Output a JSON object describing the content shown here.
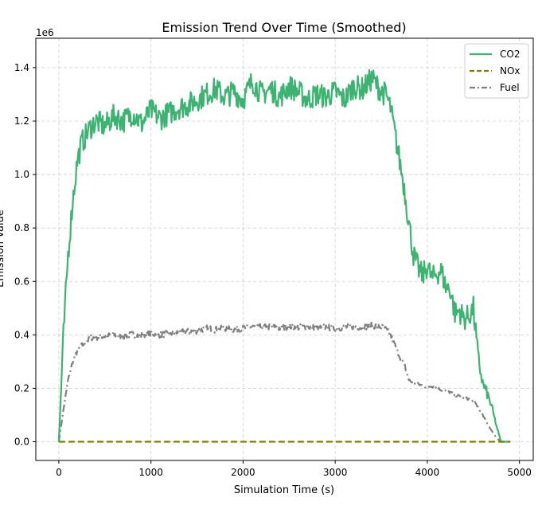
{
  "chart_data": {
    "type": "line",
    "title": "Emission Trend Over Time (Smoothed)",
    "xlabel": "Simulation Time (s)",
    "ylabel": "Emission Value",
    "offset_text": "1e6",
    "xlim": [
      -250,
      5150
    ],
    "ylim": [
      -70000,
      1510000
    ],
    "xticks": [
      0,
      1000,
      2000,
      3000,
      4000,
      5000
    ],
    "xtick_labels": [
      "0",
      "1000",
      "2000",
      "3000",
      "4000",
      "5000"
    ],
    "yticks": [
      0,
      200000,
      400000,
      600000,
      800000,
      1000000,
      1200000,
      1400000
    ],
    "ytick_labels": [
      "0.0",
      "0.2",
      "0.4",
      "0.6",
      "0.8",
      "1.0",
      "1.2",
      "1.4"
    ],
    "grid": true,
    "legend_position": "top-right",
    "series": [
      {
        "name": "CO2",
        "color": "#3cb371",
        "style": "solid",
        "x": [
          0,
          50,
          100,
          150,
          200,
          250,
          300,
          350,
          400,
          500,
          600,
          700,
          800,
          900,
          1000,
          1100,
          1200,
          1300,
          1400,
          1500,
          1600,
          1700,
          1800,
          1900,
          2000,
          2100,
          2200,
          2300,
          2400,
          2500,
          2600,
          2700,
          2800,
          2900,
          3000,
          3100,
          3200,
          3300,
          3400,
          3500,
          3550,
          3600,
          3650,
          3700,
          3750,
          3800,
          3850,
          3900,
          3950,
          4000,
          4050,
          4100,
          4150,
          4200,
          4250,
          4300,
          4350,
          4400,
          4450,
          4500,
          4550,
          4600,
          4650,
          4700,
          4750,
          4800,
          4850,
          4900
        ],
        "y": [
          0,
          400000,
          700000,
          900000,
          1050000,
          1120000,
          1150000,
          1180000,
          1200000,
          1180000,
          1220000,
          1200000,
          1230000,
          1190000,
          1240000,
          1210000,
          1230000,
          1250000,
          1260000,
          1280000,
          1300000,
          1320000,
          1290000,
          1310000,
          1280000,
          1350000,
          1300000,
          1320000,
          1290000,
          1330000,
          1310000,
          1280000,
          1300000,
          1290000,
          1310000,
          1280000,
          1330000,
          1320000,
          1360000,
          1310000,
          1300000,
          1250000,
          1150000,
          1050000,
          950000,
          820000,
          700000,
          650000,
          620000,
          660000,
          610000,
          630000,
          640000,
          580000,
          570000,
          480000,
          490000,
          460000,
          470000,
          500000,
          320000,
          220000,
          180000,
          130000,
          60000,
          0,
          0,
          0
        ]
      },
      {
        "name": "NOx",
        "color": "#808000",
        "style": "dashed",
        "x": [
          0,
          4900
        ],
        "y": [
          0,
          0
        ]
      },
      {
        "name": "Fuel",
        "color": "#808080",
        "style": "dashdot",
        "x": [
          0,
          50,
          100,
          150,
          200,
          250,
          300,
          350,
          400,
          500,
          600,
          700,
          800,
          900,
          1000,
          1100,
          1200,
          1300,
          1400,
          1500,
          1600,
          1700,
          1800,
          1900,
          2000,
          2100,
          2200,
          2300,
          2400,
          2500,
          2600,
          2700,
          2800,
          2900,
          3000,
          3100,
          3200,
          3300,
          3400,
          3500,
          3550,
          3600,
          3650,
          3700,
          3750,
          3800,
          3850,
          3900,
          3950,
          4000,
          4050,
          4100,
          4150,
          4200,
          4250,
          4300,
          4350,
          4400,
          4450,
          4500,
          4550,
          4600,
          4650,
          4700,
          4750,
          4800,
          4850,
          4900
        ],
        "y": [
          0,
          120000,
          230000,
          300000,
          340000,
          360000,
          375000,
          390000,
          390000,
          395000,
          400000,
          395000,
          402000,
          398000,
          405000,
          400000,
          405000,
          410000,
          412000,
          415000,
          425000,
          420000,
          425000,
          420000,
          425000,
          430000,
          428000,
          430000,
          425000,
          432000,
          428000,
          430000,
          425000,
          430000,
          425000,
          428000,
          432000,
          428000,
          435000,
          430000,
          420000,
          400000,
          360000,
          320000,
          290000,
          230000,
          220000,
          215000,
          210000,
          205000,
          210000,
          200000,
          195000,
          190000,
          185000,
          175000,
          170000,
          165000,
          160000,
          155000,
          130000,
          100000,
          70000,
          40000,
          15000,
          0,
          0,
          0
        ]
      }
    ]
  }
}
